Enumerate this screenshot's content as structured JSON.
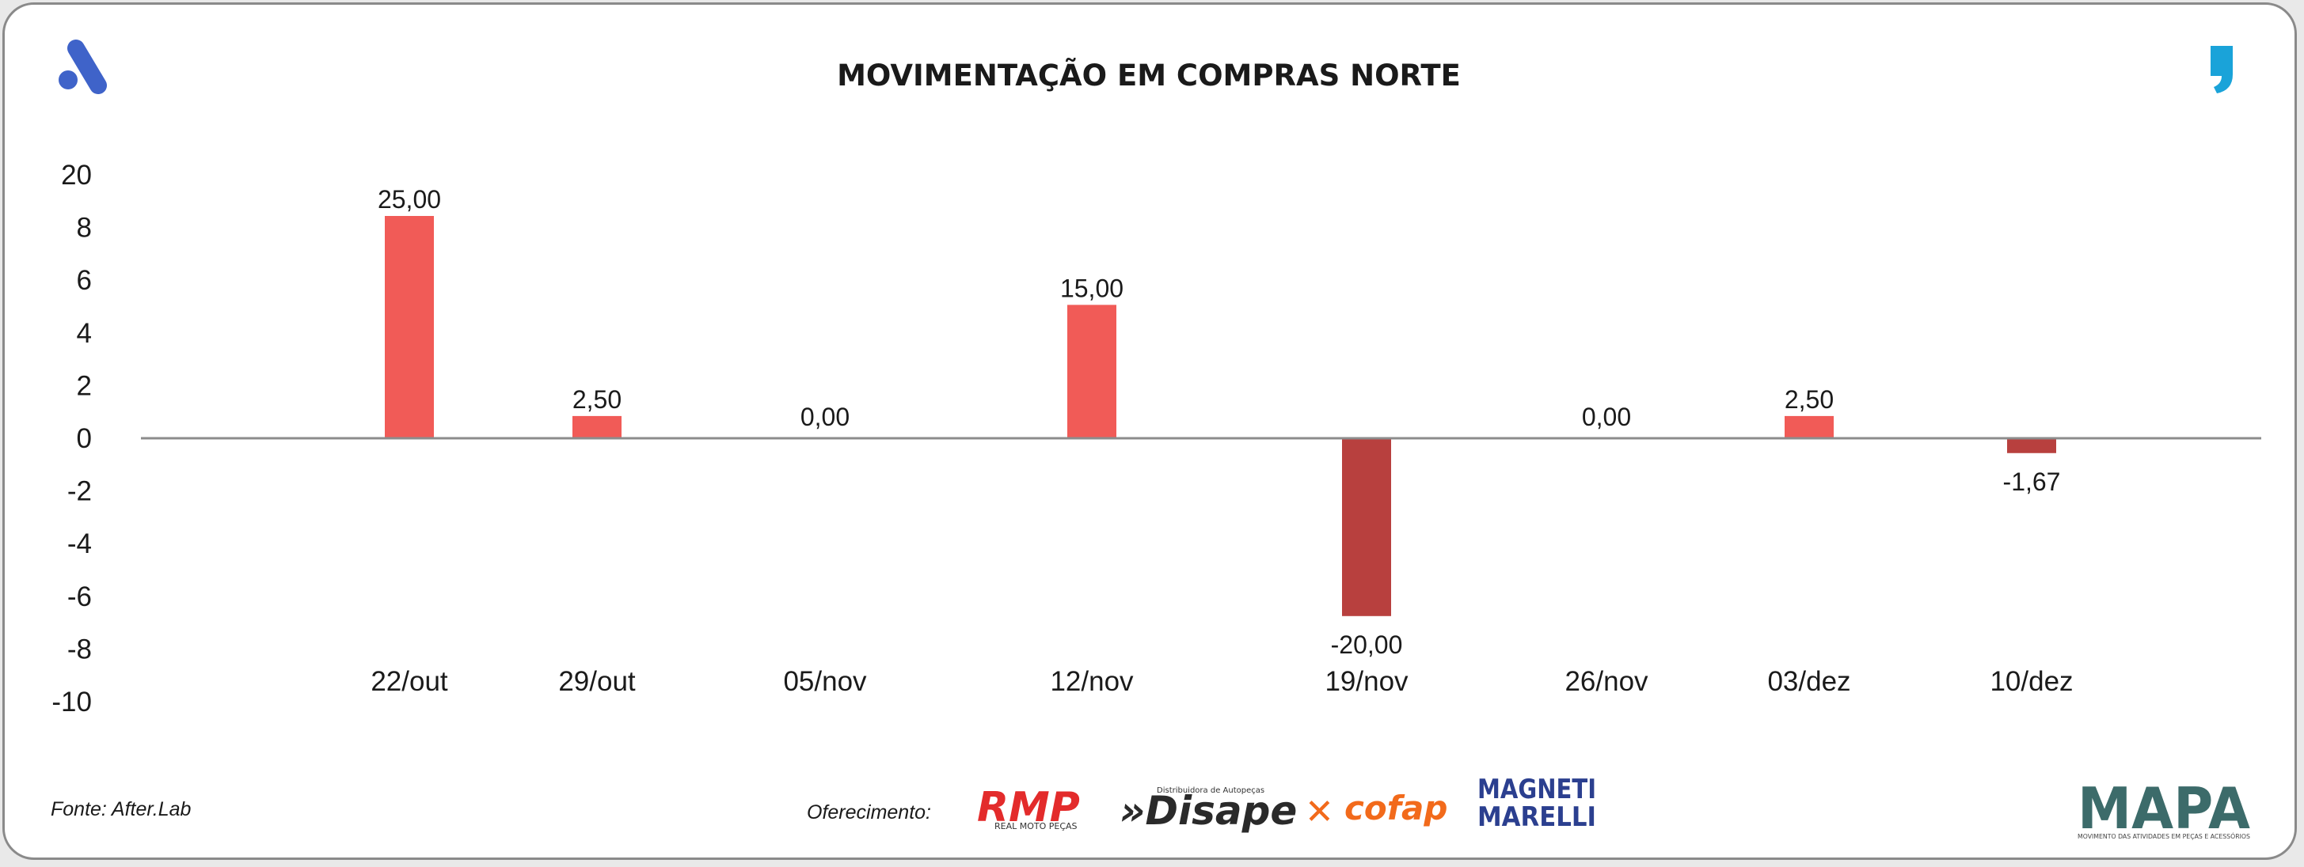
{
  "chart_data": {
    "type": "bar",
    "title": "MOVIMENTAÇÃO EM COMPRAS NORTE",
    "categories": [
      "22/out",
      "29/out",
      "05/nov",
      "12/nov",
      "19/nov",
      "26/nov",
      "03/dez",
      "10/dez"
    ],
    "values": [
      25.0,
      2.5,
      0.0,
      15.0,
      -20.0,
      0.0,
      2.5,
      -1.67
    ],
    "value_labels": [
      "25,00",
      "2,50",
      "0,00",
      "15,00",
      "-20,00",
      "0,00",
      "2,50",
      "-1,67"
    ],
    "y_tick_labels": [
      "20",
      "8",
      "6",
      "4",
      "2",
      "0",
      "-2",
      "-4",
      "-6",
      "-8",
      "-10"
    ],
    "xlabel": "",
    "ylabel": "",
    "grid": false,
    "legend": "none",
    "colors": {
      "positive": "#f15b57",
      "negative": "#b8403e",
      "axis": "#8c8c8c"
    }
  },
  "footer": {
    "source": "Fonte: After.Lab",
    "sponsor_label": "Oferecimento:",
    "sponsors": [
      {
        "name": "RMP",
        "tagline": "REAL MOTO PEÇAS"
      },
      {
        "name": "»Disape",
        "tagline": "Distribuidora de Autopeças"
      },
      {
        "name": "cofap"
      },
      {
        "name": "MAGNETI MARELLI"
      }
    ]
  },
  "brand": {
    "mapa_name": "MAPA",
    "mapa_tagline": "MOVIMENTO DAS ATIVIDADES EM PEÇAS E ACESSÓRIOS",
    "accent_blue": "#3f63c9",
    "accent_cyan": "#1aa3d9"
  }
}
